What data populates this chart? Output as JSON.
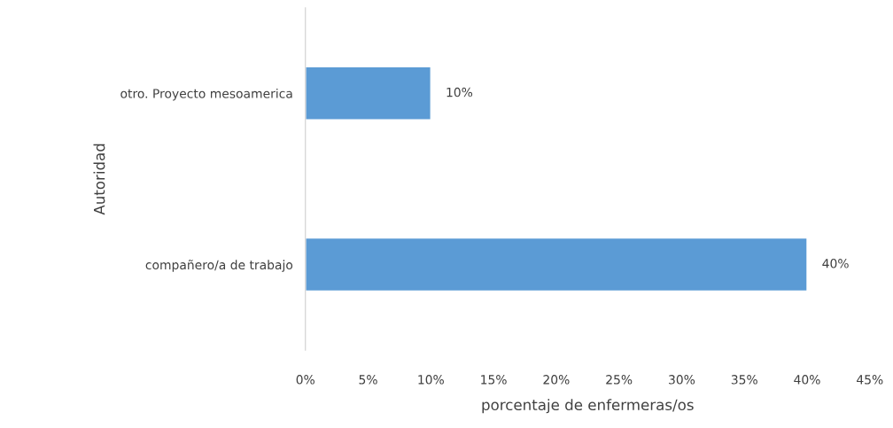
{
  "chart_data": {
    "type": "bar",
    "orientation": "horizontal",
    "xlabel": "porcentaje de enfermeras/os",
    "ylabel": "Autoridad",
    "categories": [
      "otro. Proyecto mesoamerica",
      "compañero/a de trabajo"
    ],
    "values": [
      10,
      40
    ],
    "value_labels": [
      "10%",
      "40%"
    ],
    "color": "#5b9bd5",
    "xlim": [
      0,
      45
    ],
    "xticks": [
      {
        "value": 0,
        "label": "0%"
      },
      {
        "value": 5,
        "label": "5%"
      },
      {
        "value": 10,
        "label": "10%"
      },
      {
        "value": 15,
        "label": "15%"
      },
      {
        "value": 20,
        "label": "20%"
      },
      {
        "value": 25,
        "label": "25%"
      },
      {
        "value": 30,
        "label": "30%"
      },
      {
        "value": 35,
        "label": "35%"
      },
      {
        "value": 40,
        "label": "40%"
      },
      {
        "value": 45,
        "label": "45%"
      }
    ],
    "grid": false
  }
}
